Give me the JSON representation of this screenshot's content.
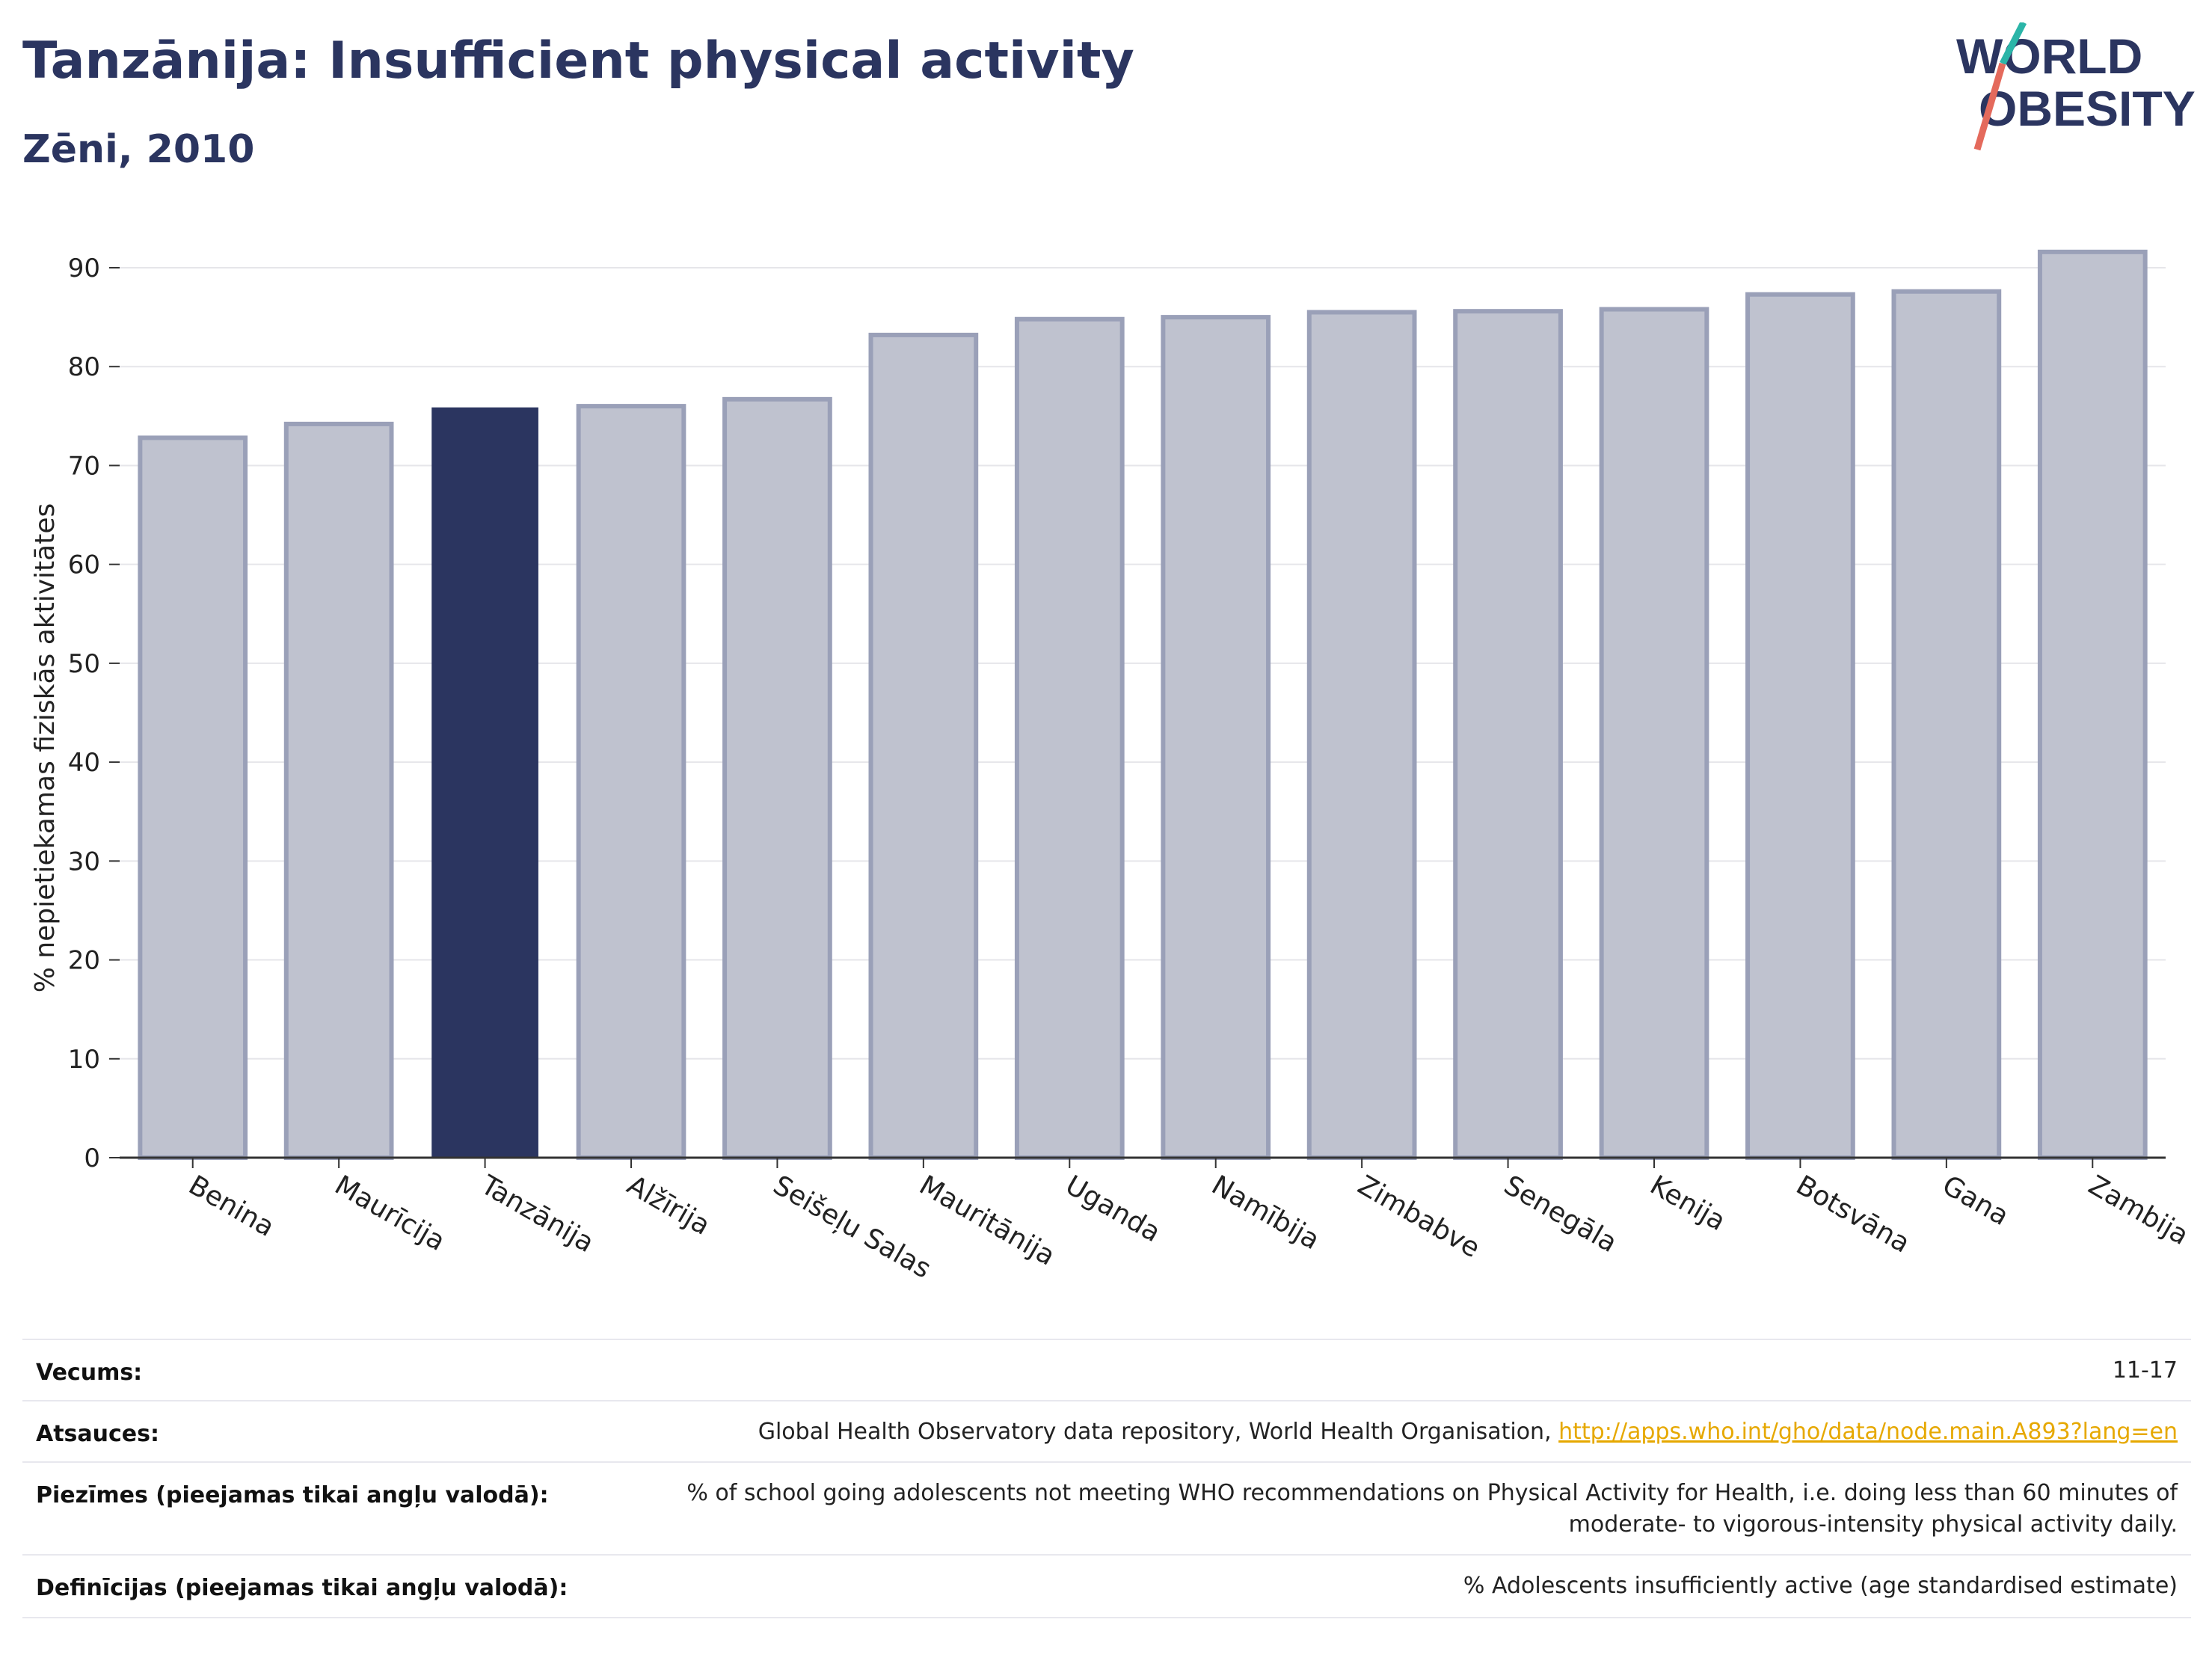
{
  "header": {
    "title": "Tanzānija: Insufficient physical activity",
    "subtitle": "Zēni, 2010"
  },
  "logo": {
    "line1": "WORLD",
    "line2": "OBESITY"
  },
  "colors": {
    "highlight": "#2b3560",
    "bar": "#bfc2cf",
    "bar_stroke": "#9aa0b8",
    "accent_teal": "#2bb5a8",
    "accent_coral": "#e46a5c"
  },
  "chart_data": {
    "type": "bar",
    "categories": [
      "Benina",
      "Maurīcija",
      "Tanzānija",
      "Alžīrija",
      "Seišeļu Salas",
      "Mauritānija",
      "Uganda",
      "Namībija",
      "Zimbabve",
      "Senegāla",
      "Kenija",
      "Botsvāna",
      "Gana",
      "Zambija"
    ],
    "values": [
      72.8,
      74.2,
      75.8,
      76.0,
      76.7,
      83.2,
      84.8,
      85.0,
      85.5,
      85.6,
      85.8,
      87.3,
      87.6,
      91.6
    ],
    "highlight": "Tanzānija",
    "ylabel": "% nepietiekamas fiziskās aktivitātes",
    "yticks": [
      0,
      10,
      20,
      30,
      40,
      50,
      60,
      70,
      80,
      90
    ],
    "ylim": [
      0,
      95
    ],
    "grid": true
  },
  "info": {
    "rows": [
      {
        "label": "Vecums:",
        "value": "11-17"
      },
      {
        "label": "Atsauces:",
        "value": "Global Health Observatory data repository, World Health Organisation, ",
        "link": "http://apps.who.int/gho/data/node.main.A893?lang=en"
      },
      {
        "label": "Piezīmes (pieejamas tikai angļu valodā):",
        "value": "% of school going adolescents not meeting WHO recommendations on Physical Activity for Health, i.e. doing less than 60 minutes of",
        "value2": "moderate- to vigorous-intensity physical activity daily."
      },
      {
        "label": "Definīcijas (pieejamas tikai angļu valodā):",
        "value": "% Adolescents insufficiently active (age standardised estimate)"
      }
    ]
  }
}
